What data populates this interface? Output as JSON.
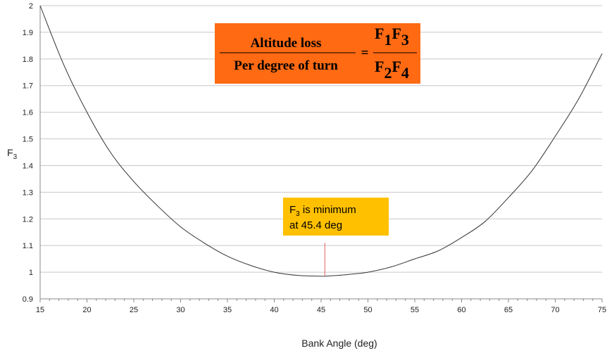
{
  "chart_data": {
    "type": "line",
    "title": "",
    "xlabel": "Bank Angle  (deg)",
    "ylabel": "F",
    "ylabel_subscript": "3",
    "xlim": [
      15,
      75
    ],
    "ylim": [
      0.9,
      2.0
    ],
    "x_ticks": [
      "15",
      "20",
      "25",
      "30",
      "35",
      "40",
      "45",
      "50",
      "55",
      "60",
      "65",
      "70",
      "75"
    ],
    "y_ticks": [
      "0.9",
      "1",
      "1.1",
      "1.2",
      "1.3",
      "1.4",
      "1.5",
      "1.6",
      "1.7",
      "1.8",
      "1.9",
      "2"
    ],
    "grid": "horizontal",
    "line_color": "#333333",
    "series": [
      {
        "x": [
          15,
          17.5,
          20,
          22.5,
          25,
          27.5,
          30,
          32.5,
          35,
          37.5,
          40,
          42.5,
          45,
          45.4,
          47.5,
          50,
          52.5,
          55,
          57.5,
          60,
          62.5,
          65,
          67.5,
          70,
          72.5,
          75
        ],
        "values": [
          2.0,
          1.78,
          1.6,
          1.45,
          1.34,
          1.25,
          1.17,
          1.11,
          1.06,
          1.025,
          1.0,
          0.988,
          0.985,
          0.985,
          0.99,
          1.0,
          1.02,
          1.05,
          1.08,
          1.13,
          1.19,
          1.28,
          1.38,
          1.51,
          1.65,
          1.82
        ]
      }
    ],
    "marker_line": {
      "x": 45.4,
      "y_top": 1.11,
      "color": "#e06060"
    },
    "formula_box": {
      "numerator": "Altitude  loss",
      "denominator": "Per degree  of  turn",
      "equals": "=",
      "rhs_top": [
        {
          "letter": "F",
          "sub": "1"
        },
        {
          "letter": "F",
          "sub": "3"
        }
      ],
      "rhs_bottom": [
        {
          "letter": "F",
          "sub": "2"
        },
        {
          "letter": "F",
          "sub": "4"
        }
      ],
      "color": "#ff6a13"
    },
    "annotation": {
      "line1_letter": "F",
      "line1_sub": "3",
      "line1_rest": " is minimum",
      "line2": "at 45.4 deg",
      "color": "#ffc000"
    }
  }
}
